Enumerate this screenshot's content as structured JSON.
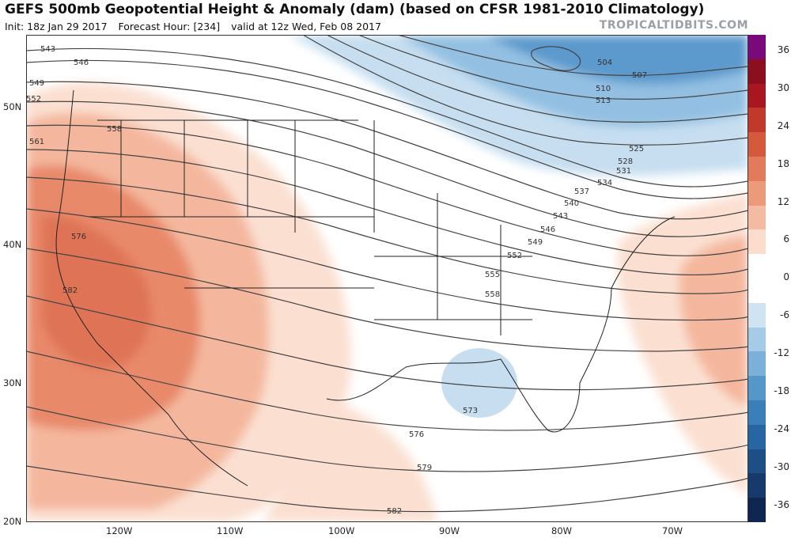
{
  "header": {
    "title": "GEFS 500mb Geopotential Height & Anomaly (dam) (based on CFSR 1981-2010 Climatology)",
    "init": "Init: 18z Jan 29 2017",
    "forecast_hour": "Forecast Hour: [234]",
    "valid": "valid at 12z Wed, Feb 08 2017",
    "credit": "TROPICALTIDBITS.COM"
  },
  "axes": {
    "lat_labels": [
      "50N",
      "40N",
      "30N",
      "20N"
    ],
    "lon_labels": [
      "120W",
      "110W",
      "100W",
      "90W",
      "80W",
      "70W"
    ]
  },
  "colorbar": {
    "labels": [
      "36",
      "30",
      "24",
      "18",
      "12",
      "6",
      "0",
      "-6",
      "-12",
      "-18",
      "-24",
      "-30",
      "-36"
    ],
    "colors": [
      "#7a0a7a",
      "#8b0f1d",
      "#a8161f",
      "#c0392b",
      "#d35a3d",
      "#e27b5c",
      "#ec9a7c",
      "#f4bba3",
      "#fbdccd",
      "#ffffff",
      "#ffffff",
      "#cfe3f1",
      "#a5cbe6",
      "#7bb1d8",
      "#5597c9",
      "#3b7fb9",
      "#2766a2",
      "#1d4f86",
      "#163a6b",
      "#0f2750"
    ]
  },
  "contours": {
    "top_west": [
      "543",
      "546",
      "549",
      "552"
    ],
    "west": [
      "558",
      "561"
    ],
    "north": [
      "504",
      "507",
      "510",
      "513"
    ],
    "northeast": [
      "525",
      "528",
      "531",
      "534",
      "537",
      "540",
      "543",
      "546",
      "549",
      "552",
      "555",
      "558"
    ],
    "southwest": [
      "576",
      "582"
    ],
    "south": [
      "573",
      "576",
      "579",
      "582"
    ]
  },
  "colors": {
    "warm_light": "#fbe0d2",
    "warm_mid": "#f4b79d",
    "warm_strong": "#e8896a",
    "warm_core": "#de7355",
    "cold_light": "#c6def0",
    "cold_mid": "#93c0e2",
    "cold_strong": "#5b99cc",
    "contour": "#444444",
    "border": "#222222"
  }
}
